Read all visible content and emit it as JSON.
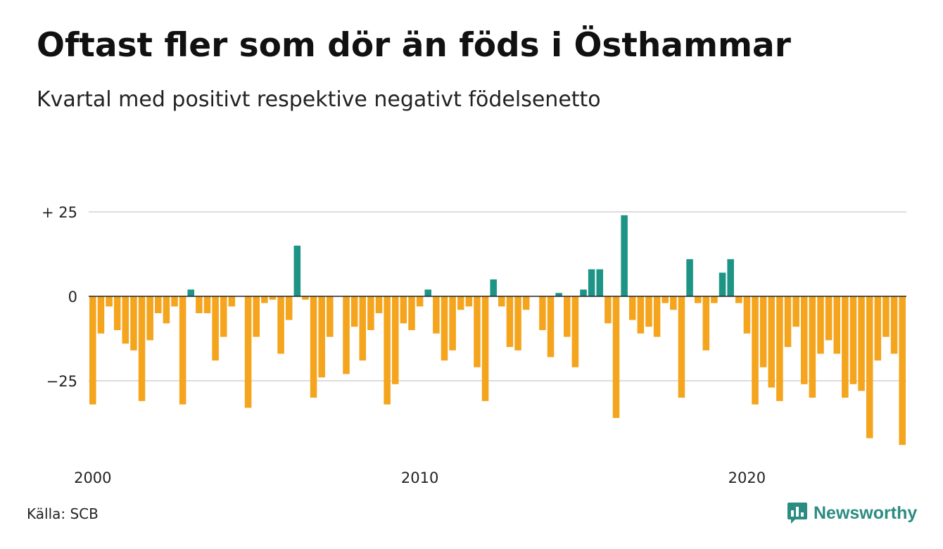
{
  "title": "Oftast fler som dör än föds i Östhammar",
  "subtitle": "Kvartal med positivt respektive negativt födelsenetto",
  "source": "Källa: SCB",
  "brand": {
    "name": "Newsworthy",
    "icon": "newsworthy-logo-icon",
    "color": "#2b8c82"
  },
  "chart_data": {
    "type": "bar",
    "colors": {
      "positive": "#1d9485",
      "negative": "#f4a41d",
      "grid": "#dddddd",
      "zero_line": "#222222"
    },
    "grid": true,
    "ylim": [
      -45,
      27
    ],
    "y_ticks": [
      {
        "value": 25,
        "label": "+ 25"
      },
      {
        "value": 0,
        "label": "0"
      },
      {
        "value": -25,
        "label": "−25"
      }
    ],
    "x_ticks": [
      {
        "year": 2000,
        "label": "2000"
      },
      {
        "year": 2010,
        "label": "2010"
      },
      {
        "year": 2020,
        "label": "2020"
      }
    ],
    "start_year": 2000,
    "values": [
      -32,
      -11,
      -3,
      -10,
      -14,
      -16,
      -31,
      -13,
      -5,
      -8,
      -3,
      -32,
      2,
      -5,
      -5,
      -19,
      -12,
      -3,
      0,
      -33,
      -12,
      -2,
      -1,
      -17,
      -7,
      15,
      -1,
      -30,
      -24,
      -12,
      0,
      -23,
      -9,
      -19,
      -10,
      -5,
      -32,
      -26,
      -8,
      -10,
      -3,
      2,
      -11,
      -19,
      -16,
      -4,
      -3,
      -21,
      -31,
      5,
      -3,
      -15,
      -16,
      -4,
      0,
      -10,
      -18,
      1,
      -12,
      -21,
      2,
      8,
      8,
      -8,
      -36,
      24,
      -7,
      -11,
      -9,
      -12,
      -2,
      -4,
      -30,
      11,
      -2,
      -16,
      -2,
      7,
      11,
      -2,
      -11,
      -32,
      -21,
      -27,
      -31,
      -15,
      -9,
      -26,
      -30,
      -17,
      -13,
      -17,
      -30,
      -26,
      -28,
      -42,
      -19,
      -12,
      -17,
      -44
    ]
  }
}
